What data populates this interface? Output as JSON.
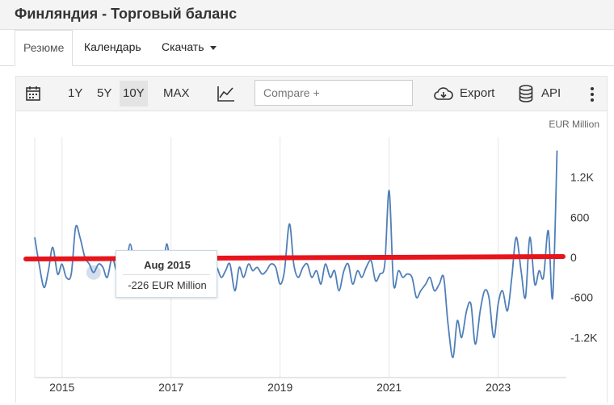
{
  "page": {
    "title": "Финляндия - Торговый баланс"
  },
  "tabs": [
    {
      "label": "Резюме",
      "active": true
    },
    {
      "label": "Календарь",
      "active": false
    },
    {
      "label": "Скачать",
      "active": false,
      "dropdown": true
    }
  ],
  "toolbar": {
    "calendar_icon": "calendar-icon",
    "ranges": [
      {
        "label": "1Y",
        "active": false
      },
      {
        "label": "5Y",
        "active": false
      },
      {
        "label": "10Y",
        "active": true
      },
      {
        "label": "MAX",
        "active": false
      }
    ],
    "chart_type_icon": "line-chart-icon",
    "compare_placeholder": "Compare +",
    "export_label": "Export",
    "export_icon": "cloud-download-icon",
    "api_label": "API",
    "api_icon": "database-icon",
    "more_icon": "vertical-dots-icon"
  },
  "chart": {
    "unit_label": "EUR Million",
    "tooltip": {
      "date": "Aug 2015",
      "value": "-226 EUR Million"
    },
    "line_color": "#4f7fb8",
    "zero_line_color": "#e8141c"
  },
  "chart_data": {
    "type": "line",
    "y_unit": "EUR Million",
    "xlim": [
      2014.5,
      2024.25
    ],
    "ylim": [
      -1800,
      1800
    ],
    "x_ticks": [
      {
        "value": 2015,
        "label": "2015"
      },
      {
        "value": 2017,
        "label": "2017"
      },
      {
        "value": 2019,
        "label": "2019"
      },
      {
        "value": 2021,
        "label": "2021"
      },
      {
        "value": 2023,
        "label": "2023"
      }
    ],
    "y_ticks": [
      {
        "value": 1200,
        "label": "1.2K"
      },
      {
        "value": 600,
        "label": "600"
      },
      {
        "value": 0,
        "label": "0"
      },
      {
        "value": -600,
        "label": "-600"
      },
      {
        "value": -1200,
        "label": "-1.2K"
      }
    ],
    "grid": "vertical",
    "highlight": {
      "x": 2015.58,
      "y": -226
    },
    "series": [
      {
        "x": [
          2014.5,
          2014.58,
          2014.67,
          2014.75,
          2014.83,
          2014.92,
          2015.0,
          2015.08,
          2015.17,
          2015.25,
          2015.33,
          2015.42,
          2015.5,
          2015.58,
          2015.67,
          2015.75,
          2015.83,
          2015.92,
          2016.0,
          2016.08,
          2016.17,
          2016.25,
          2016.33,
          2016.42,
          2016.5,
          2016.58,
          2016.67,
          2016.75,
          2016.83,
          2016.92,
          2017.0,
          2017.08,
          2017.17,
          2017.25,
          2017.33,
          2017.42,
          2017.5,
          2017.58,
          2017.67,
          2017.75,
          2017.83,
          2017.92,
          2018.0,
          2018.08,
          2018.17,
          2018.25,
          2018.33,
          2018.42,
          2018.5,
          2018.58,
          2018.67,
          2018.75,
          2018.83,
          2018.92,
          2019.0,
          2019.08,
          2019.17,
          2019.25,
          2019.33,
          2019.42,
          2019.5,
          2019.58,
          2019.67,
          2019.75,
          2019.83,
          2019.92,
          2020.0,
          2020.08,
          2020.17,
          2020.25,
          2020.33,
          2020.42,
          2020.5,
          2020.58,
          2020.67,
          2020.75,
          2020.83,
          2020.92,
          2021.0,
          2021.08,
          2021.17,
          2021.25,
          2021.33,
          2021.42,
          2021.5,
          2021.58,
          2021.67,
          2021.75,
          2021.83,
          2021.92,
          2022.0,
          2022.08,
          2022.17,
          2022.25,
          2022.33,
          2022.42,
          2022.5,
          2022.58,
          2022.67,
          2022.75,
          2022.83,
          2022.92,
          2023.0,
          2023.08,
          2023.17,
          2023.25,
          2023.33,
          2023.42,
          2023.5,
          2023.58,
          2023.67,
          2023.75,
          2023.83,
          2023.92,
          2024.0,
          2024.08
        ],
        "y": [
          300,
          -100,
          -450,
          -200,
          150,
          -250,
          -100,
          -300,
          -250,
          450,
          300,
          0,
          -100,
          -226,
          -100,
          -150,
          -300,
          0,
          -200,
          -100,
          -150,
          200,
          -150,
          -300,
          -100,
          -50,
          -150,
          -100,
          -300,
          200,
          -200,
          -250,
          -300,
          0,
          -150,
          -200,
          -100,
          -300,
          -200,
          -350,
          -150,
          -300,
          -200,
          -100,
          -500,
          -150,
          -300,
          -100,
          -200,
          -150,
          -250,
          -200,
          -100,
          -150,
          -400,
          -200,
          500,
          -100,
          -300,
          -150,
          -100,
          -300,
          -200,
          -400,
          -100,
          -300,
          -200,
          -500,
          -200,
          -100,
          -400,
          -200,
          -300,
          -150,
          -50,
          -350,
          -250,
          -100,
          1000,
          -400,
          -200,
          -300,
          -250,
          -300,
          -600,
          -500,
          -400,
          -300,
          -500,
          -400,
          -300,
          -1000,
          -1500,
          -950,
          -1200,
          -800,
          -700,
          -1300,
          -800,
          -500,
          -600,
          -1200,
          -700,
          -500,
          -800,
          -300,
          300,
          -200,
          -600,
          300,
          -400,
          -200,
          -300,
          400,
          -600,
          1600
        ]
      }
    ]
  }
}
